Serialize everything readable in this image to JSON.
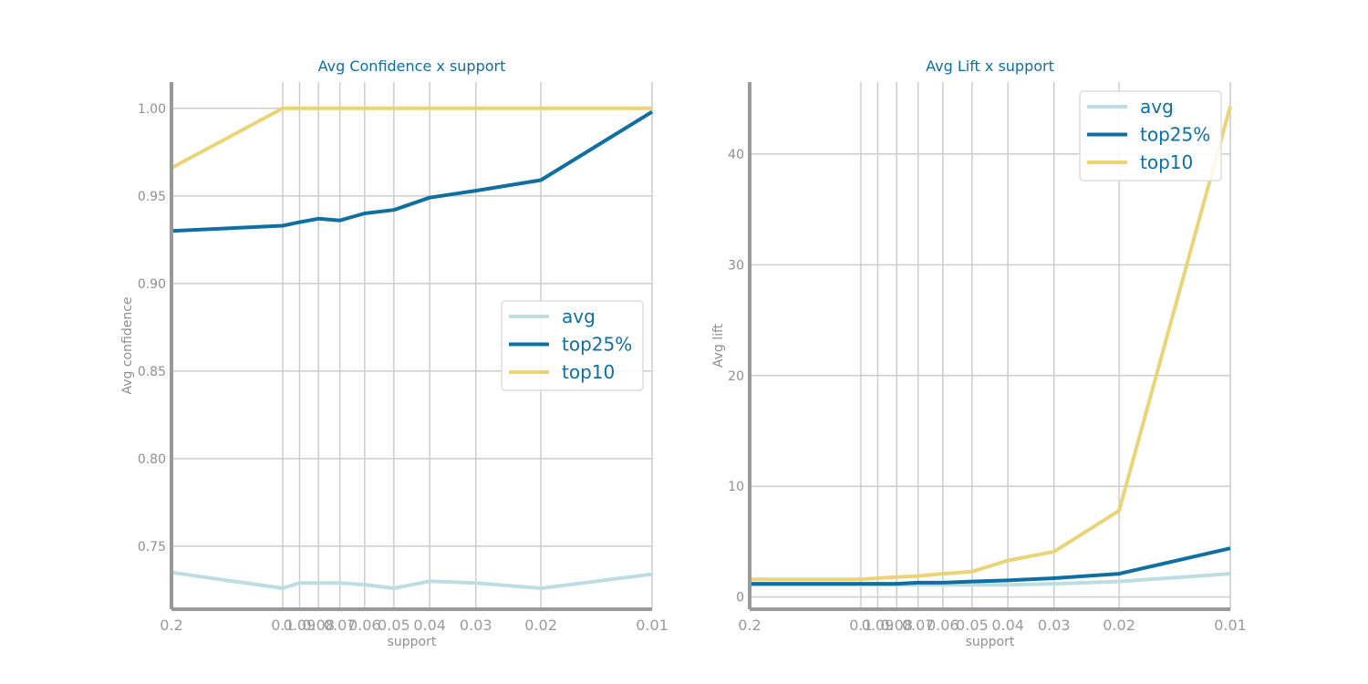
{
  "chart_data": [
    {
      "type": "line",
      "title": "Avg Confidence x support",
      "xlabel": "support",
      "ylabel": "Avg confidence",
      "x": [
        0.2,
        0.1,
        0.09,
        0.08,
        0.07,
        0.06,
        0.05,
        0.04,
        0.03,
        0.02,
        0.01
      ],
      "x_tick_labels": [
        "0.2",
        "0.1",
        "0.09",
        "0.08",
        "0.07",
        "0.06",
        "0.05",
        "0.04",
        "0.03",
        "0.02",
        "0.01"
      ],
      "xlim": [
        0.2,
        0.01
      ],
      "ylim": [
        0.714,
        1.015
      ],
      "y_ticks": [
        0.75,
        0.8,
        0.85,
        0.9,
        0.95,
        1.0
      ],
      "y_tick_labels": [
        "0.75",
        "0.80",
        "0.85",
        "0.90",
        "0.95",
        "1.00"
      ],
      "grid": true,
      "legend": "center-right",
      "series": [
        {
          "name": "avg",
          "color": "#bcdde2",
          "values": [
            0.735,
            0.726,
            0.729,
            0.729,
            0.729,
            0.728,
            0.726,
            0.73,
            0.729,
            0.726,
            0.734
          ]
        },
        {
          "name": "top25%",
          "color": "#0f6fa0",
          "values": [
            0.93,
            0.933,
            0.935,
            0.937,
            0.936,
            0.94,
            0.942,
            0.949,
            0.953,
            0.959,
            0.998
          ]
        },
        {
          "name": "top10",
          "color": "#e9d477",
          "values": [
            0.966,
            1.0,
            1.0,
            1.0,
            1.0,
            1.0,
            1.0,
            1.0,
            1.0,
            1.0,
            1.0
          ]
        }
      ]
    },
    {
      "type": "line",
      "title": "Avg Lift x support",
      "xlabel": "support",
      "ylabel": "Avg lift",
      "x": [
        0.2,
        0.1,
        0.09,
        0.08,
        0.07,
        0.06,
        0.05,
        0.04,
        0.03,
        0.02,
        0.01
      ],
      "x_tick_labels": [
        "0.2",
        "0.1",
        "0.09",
        "0.08",
        "0.07",
        "0.06",
        "0.05",
        "0.04",
        "0.03",
        "0.02",
        "0.01"
      ],
      "xlim": [
        0.2,
        0.01
      ],
      "ylim": [
        -1.1,
        46.5
      ],
      "y_ticks": [
        0,
        10,
        20,
        30,
        40
      ],
      "y_tick_labels": [
        "0",
        "10",
        "20",
        "30",
        "40"
      ],
      "grid": true,
      "legend": "top-right",
      "series": [
        {
          "name": "avg",
          "color": "#bcdde2",
          "values": [
            1.1,
            1.1,
            1.1,
            1.1,
            1.1,
            1.1,
            1.1,
            1.1,
            1.2,
            1.4,
            2.1
          ]
        },
        {
          "name": "top25%",
          "color": "#0f6fa0",
          "values": [
            1.2,
            1.2,
            1.2,
            1.2,
            1.3,
            1.3,
            1.4,
            1.5,
            1.7,
            2.1,
            4.4
          ]
        },
        {
          "name": "top10",
          "color": "#e9d477",
          "values": [
            1.6,
            1.6,
            1.7,
            1.8,
            1.9,
            2.1,
            2.3,
            3.3,
            4.1,
            7.8,
            44.3
          ]
        }
      ]
    }
  ]
}
